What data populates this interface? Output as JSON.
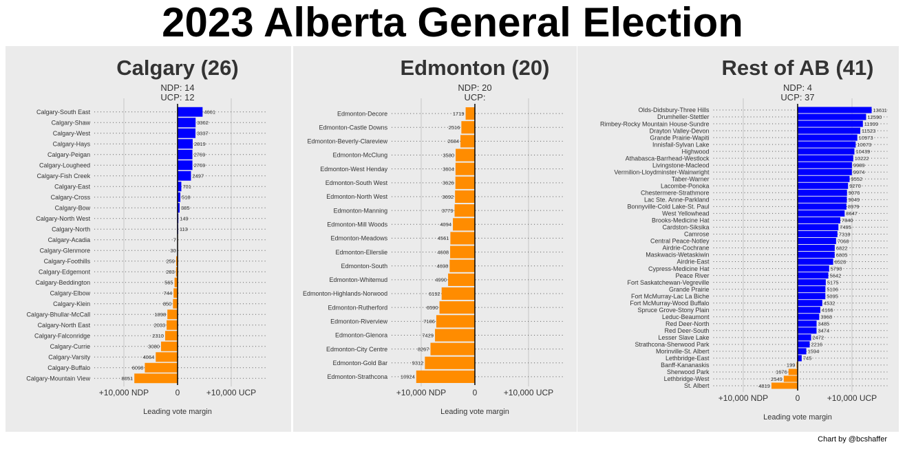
{
  "title": "2023 Alberta General Election",
  "credit": "Chart by @bcshaffer",
  "colors": {
    "ndp": "#FF8C00",
    "ucp": "#0000FF",
    "panel": "#EBEBEB"
  },
  "chart_data": [
    {
      "type": "bar",
      "title": "Calgary (26)",
      "summary_ndp": "NDP: 14",
      "summary_ucp": "UCP: 12",
      "xlabel": "Leading vote margin",
      "xlim": [
        -15500,
        16500
      ],
      "xticks": [
        {
          "value": -10000,
          "label": "+10,000 NDP"
        },
        {
          "value": 0,
          "label": "0"
        },
        {
          "value": 10000,
          "label": "+10,000 UCP"
        }
      ],
      "categories": [
        "Calgary-South East",
        "Calgary-Shaw",
        "Calgary-West",
        "Calgary-Hays",
        "Calgary-Peigan",
        "Calgary-Lougheed",
        "Calgary-Fish Creek",
        "Calgary-East",
        "Calgary-Cross",
        "Calgary-Bow",
        "Calgary-North West",
        "Calgary-North",
        "Calgary-Acadia",
        "Calgary-Glenmore",
        "Calgary-Foothills",
        "Calgary-Edgemont",
        "Calgary-Beddington",
        "Calgary-Elbow",
        "Calgary-Klein",
        "Calgary-Bhullar-McCall",
        "Calgary-North East",
        "Calgary-Falconridge",
        "Calgary-Currie",
        "Calgary-Varsity",
        "Calgary-Buffalo",
        "Calgary-Mountain View"
      ],
      "values": [
        4661,
        3362,
        3337,
        2819,
        2769,
        2769,
        2497,
        701,
        518,
        385,
        149,
        113,
        -7,
        -30,
        -259,
        -283,
        -565,
        -744,
        -850,
        -1898,
        -2033,
        -2310,
        -3080,
        -4064,
        -6098,
        -8051
      ],
      "labels": [
        "4661",
        "3362",
        "3337",
        "2819",
        "2769",
        "2769",
        "2497",
        "701",
        "518",
        "385",
        "149",
        "113",
        "7",
        "30",
        "259",
        "283",
        "565",
        "744",
        "850",
        "1898",
        "2033",
        "2310",
        "3080",
        "4064",
        "6098",
        "8051"
      ]
    },
    {
      "type": "bar",
      "title": "Edmonton (20)",
      "summary_ndp": "NDP: 20",
      "summary_ucp": "UCP:",
      "xlabel": "Leading vote margin",
      "xlim": [
        -15500,
        16500
      ],
      "xticks": [
        {
          "value": -10000,
          "label": "+10,000 NDP"
        },
        {
          "value": 0,
          "label": "0"
        },
        {
          "value": 10000,
          "label": "+10,000 UCP"
        }
      ],
      "categories": [
        "Edmonton-Decore",
        "Edmonton-Castle Downs",
        "Edmonton-Beverly-Clareview",
        "Edmonton-McClung",
        "Edmonton-West Henday",
        "Edmonton-South West",
        "Edmonton-North West",
        "Edmonton-Manning",
        "Edmonton-Mill Woods",
        "Edmonton-Meadows",
        "Edmonton-Ellerslie",
        "Edmonton-South",
        "Edmonton-Whitemud",
        "Edmonton-Highlands-Norwood",
        "Edmonton-Rutherford",
        "Edmonton-Riverview",
        "Edmonton-Glenora",
        "Edmonton-City Centre",
        "Edmonton-Gold Bar",
        "Edmonton-Strathcona"
      ],
      "values": [
        -1719,
        -2516,
        -2684,
        -3580,
        -3604,
        -3626,
        -3692,
        -3779,
        -4094,
        -4561,
        -4608,
        -4698,
        -4990,
        -6192,
        -6590,
        -7186,
        -7429,
        -8267,
        -9312,
        -10924
      ],
      "labels": [
        "1719",
        "2516",
        "2684",
        "3580",
        "3604",
        "3626",
        "3692",
        "3779",
        "4094",
        "4561",
        "4608",
        "4698",
        "4990",
        "6192",
        "6590",
        "7186",
        "7429",
        "8267",
        "9312",
        "10924"
      ]
    },
    {
      "type": "bar",
      "title": "Rest of AB (41)",
      "summary_ndp": "NDP: 4",
      "summary_ucp": "UCP: 37",
      "xlabel": "Leading vote margin",
      "xlim": [
        -15500,
        16500
      ],
      "xticks": [
        {
          "value": -10000,
          "label": "+10,000 NDP"
        },
        {
          "value": 0,
          "label": "0"
        },
        {
          "value": 10000,
          "label": "+10,000 UCP"
        }
      ],
      "categories": [
        "Olds-Didsbury-Three Hills",
        "Drumheller-Stettler",
        "Rimbey-Rocky Mountain House-Sundre",
        "Drayton Valley-Devon",
        "Grande Prairie-Wapiti",
        "Innisfail-Sylvan Lake",
        "Highwood",
        "Athabasca-Barrhead-Westlock",
        "Livingstone-Macleod",
        "Vermilion-Lloydminster-Wainwright",
        "Taber-Warner",
        "Lacombe-Ponoka",
        "Chestermere-Strathmore",
        "Lac Ste. Anne-Parkland",
        "Bonnyville-Cold Lake-St. Paul",
        "West Yellowhead",
        "Brooks-Medicine Hat",
        "Cardston-Siksika",
        "Camrose",
        "Central Peace-Notley",
        "Airdrie-Cochrane",
        "Maskwacis-Wetaskiwin",
        "Airdrie-East",
        "Cypress-Medicine Hat",
        "Peace River",
        "Fort Saskatchewan-Vegreville",
        "Grande Prairie",
        "Fort McMurray-Lac La Biche",
        "Fort McMurray-Wood Buffalo",
        "Spruce Grove-Stony Plain",
        "Leduc-Beaumont",
        "Red Deer-North",
        "Red Deer-South",
        "Lesser Slave Lake",
        "Strathcona-Sherwood Park",
        "Morinville-St. Albert",
        "Lethbridge-East",
        "Banff-Kananaskis",
        "Sherwood Park",
        "Lethbridge-West",
        "St. Albert"
      ],
      "values": [
        13611,
        12590,
        11999,
        11523,
        10973,
        10673,
        10439,
        10222,
        9989,
        9974,
        9552,
        9270,
        9076,
        9049,
        8979,
        8647,
        7840,
        7495,
        7318,
        7068,
        6822,
        6805,
        6528,
        5790,
        5642,
        5175,
        5106,
        5095,
        4532,
        4166,
        3968,
        3485,
        3474,
        2472,
        2216,
        1594,
        745,
        -199,
        -1676,
        -2549,
        -4819
      ],
      "labels": [
        "13611",
        "12590",
        "11999",
        "11523",
        "10973",
        "10673",
        "10439",
        "10222",
        "9989",
        "9974",
        "9552",
        "9270",
        "9076",
        "9049",
        "8979",
        "8647",
        "7840",
        "7495",
        "7318",
        "7068",
        "6822",
        "6805",
        "6528",
        "5790",
        "5642",
        "5175",
        "5106",
        "5095",
        "4532",
        "4166",
        "3968",
        "3485",
        "3474",
        "2472",
        "2216",
        "1594",
        "745",
        "199",
        "1676",
        "2549",
        "4819"
      ]
    }
  ]
}
